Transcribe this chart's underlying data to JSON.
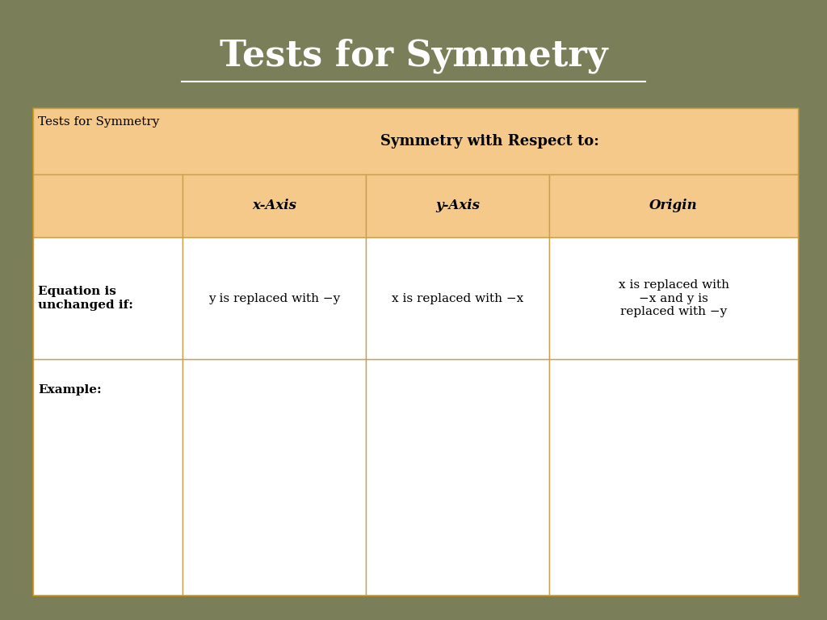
{
  "title": "Tests for Symmetry",
  "title_color": "#ffffff",
  "title_fontsize": 32,
  "bg_color": "#7a7f5a",
  "table_title": "Tests for Symmetry",
  "header1": "Symmetry with Respect to:",
  "col_headers": [
    "x-Axis",
    "y-Axis",
    "Origin"
  ],
  "row1_label": "Equation is\nunchanged if:",
  "row1_cells": [
    "y is replaced with −y",
    "x is replaced with −x",
    "x is replaced with\n−x and y is\nreplaced with −y"
  ],
  "row2_label": "Example:",
  "header_bg": "#f5c98a",
  "curve_color": "#29abe2",
  "edge_color": "#c8a050",
  "outer_edge_color": "#b8860b"
}
